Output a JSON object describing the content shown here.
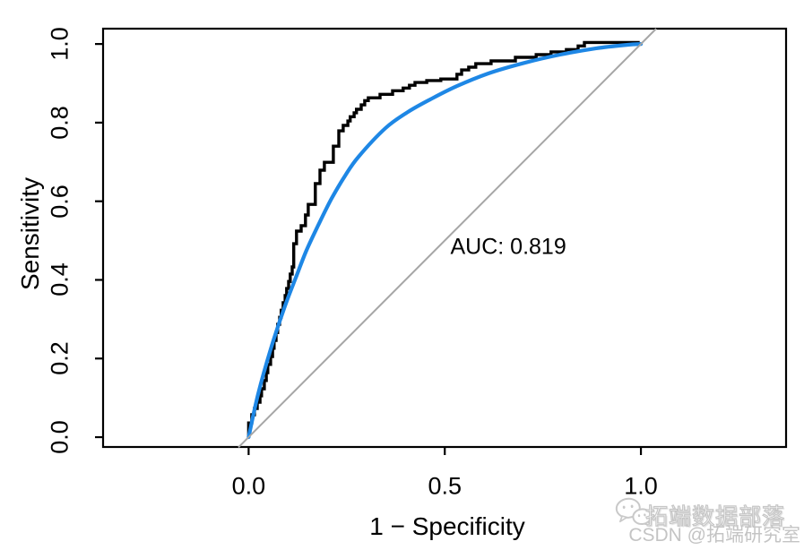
{
  "figure": {
    "xlabel": "1 − Specificity",
    "ylabel": "Sensitivity",
    "auc_label": "AUC: 0.819"
  },
  "watermark": {
    "line1": "拓端数据部落",
    "line2": "CSDN @拓端研究室",
    "icon": "wechat-chat-bubbles-icon",
    "color": "#c6c6c6"
  },
  "chart_data": {
    "type": "line",
    "title": "",
    "xlabel": "1 − Specificity",
    "ylabel": "Sensitivity",
    "auc": 0.819,
    "grid": false,
    "legend": "none",
    "xlim": [
      -0.371,
      1.37
    ],
    "ylim": [
      -0.025,
      1.039
    ],
    "x_tick_values": [
      0,
      0.5,
      1
    ],
    "x_tick_labels": [
      "0.0",
      "0.5",
      "1.0"
    ],
    "y_tick_values": [
      0,
      0.2,
      0.4,
      0.6,
      0.8,
      1
    ],
    "y_tick_labels": [
      "0.0",
      "0.2",
      "0.4",
      "0.6",
      "0.8",
      "1.0"
    ],
    "annotations": [
      {
        "text": "AUC: 0.819",
        "x": 0.662,
        "y": 0.483
      }
    ],
    "series": [
      {
        "name": "empirical_roc",
        "style": "step",
        "color": "#000000",
        "width": 3.4,
        "points": [
          [
            0,
            0
          ],
          [
            0,
            0.036
          ],
          [
            0.008,
            0.036
          ],
          [
            0.008,
            0.057
          ],
          [
            0.015,
            0.057
          ],
          [
            0.015,
            0.073
          ],
          [
            0.022,
            0.073
          ],
          [
            0.022,
            0.089
          ],
          [
            0.029,
            0.089
          ],
          [
            0.029,
            0.105
          ],
          [
            0.033,
            0.105
          ],
          [
            0.033,
            0.123
          ],
          [
            0.04,
            0.123
          ],
          [
            0.04,
            0.144
          ],
          [
            0.045,
            0.144
          ],
          [
            0.045,
            0.164
          ],
          [
            0.049,
            0.164
          ],
          [
            0.049,
            0.185
          ],
          [
            0.056,
            0.185
          ],
          [
            0.056,
            0.205
          ],
          [
            0.061,
            0.205
          ],
          [
            0.061,
            0.226
          ],
          [
            0.065,
            0.226
          ],
          [
            0.065,
            0.246
          ],
          [
            0.07,
            0.246
          ],
          [
            0.07,
            0.266
          ],
          [
            0.074,
            0.266
          ],
          [
            0.074,
            0.287
          ],
          [
            0.079,
            0.287
          ],
          [
            0.079,
            0.305
          ],
          [
            0.083,
            0.305
          ],
          [
            0.083,
            0.323
          ],
          [
            0.088,
            0.323
          ],
          [
            0.088,
            0.342
          ],
          [
            0.093,
            0.342
          ],
          [
            0.093,
            0.36
          ],
          [
            0.097,
            0.36
          ],
          [
            0.097,
            0.378
          ],
          [
            0.102,
            0.378
          ],
          [
            0.102,
            0.396
          ],
          [
            0.106,
            0.396
          ],
          [
            0.106,
            0.415
          ],
          [
            0.111,
            0.415
          ],
          [
            0.111,
            0.433
          ],
          [
            0.115,
            0.433
          ],
          [
            0.115,
            0.492
          ],
          [
            0.122,
            0.492
          ],
          [
            0.122,
            0.524
          ],
          [
            0.134,
            0.524
          ],
          [
            0.134,
            0.538
          ],
          [
            0.145,
            0.538
          ],
          [
            0.145,
            0.565
          ],
          [
            0.152,
            0.565
          ],
          [
            0.152,
            0.592
          ],
          [
            0.17,
            0.592
          ],
          [
            0.17,
            0.645
          ],
          [
            0.182,
            0.645
          ],
          [
            0.182,
            0.679
          ],
          [
            0.193,
            0.679
          ],
          [
            0.193,
            0.699
          ],
          [
            0.216,
            0.699
          ],
          [
            0.216,
            0.74
          ],
          [
            0.23,
            0.74
          ],
          [
            0.23,
            0.779
          ],
          [
            0.241,
            0.779
          ],
          [
            0.241,
            0.793
          ],
          [
            0.253,
            0.793
          ],
          [
            0.253,
            0.804
          ],
          [
            0.259,
            0.804
          ],
          [
            0.259,
            0.815
          ],
          [
            0.269,
            0.815
          ],
          [
            0.269,
            0.825
          ],
          [
            0.275,
            0.825
          ],
          [
            0.275,
            0.834
          ],
          [
            0.287,
            0.834
          ],
          [
            0.287,
            0.845
          ],
          [
            0.296,
            0.845
          ],
          [
            0.296,
            0.856
          ],
          [
            0.305,
            0.856
          ],
          [
            0.305,
            0.863
          ],
          [
            0.335,
            0.863
          ],
          [
            0.335,
            0.872
          ],
          [
            0.367,
            0.872
          ],
          [
            0.367,
            0.881
          ],
          [
            0.394,
            0.881
          ],
          [
            0.394,
            0.888
          ],
          [
            0.41,
            0.888
          ],
          [
            0.41,
            0.895
          ],
          [
            0.424,
            0.895
          ],
          [
            0.424,
            0.902
          ],
          [
            0.454,
            0.902
          ],
          [
            0.454,
            0.907
          ],
          [
            0.49,
            0.907
          ],
          [
            0.49,
            0.911
          ],
          [
            0.531,
            0.911
          ],
          [
            0.531,
            0.923
          ],
          [
            0.543,
            0.923
          ],
          [
            0.543,
            0.934
          ],
          [
            0.561,
            0.934
          ],
          [
            0.561,
            0.941
          ],
          [
            0.579,
            0.941
          ],
          [
            0.579,
            0.95
          ],
          [
            0.618,
            0.95
          ],
          [
            0.618,
            0.957
          ],
          [
            0.68,
            0.957
          ],
          [
            0.68,
            0.966
          ],
          [
            0.733,
            0.966
          ],
          [
            0.733,
            0.973
          ],
          [
            0.771,
            0.973
          ],
          [
            0.771,
            0.98
          ],
          [
            0.81,
            0.98
          ],
          [
            0.81,
            0.986
          ],
          [
            0.84,
            0.986
          ],
          [
            0.84,
            0.995
          ],
          [
            0.856,
            0.995
          ],
          [
            0.856,
            1.004
          ],
          [
            0.997,
            1.004
          ]
        ]
      },
      {
        "name": "smoothed_roc",
        "style": "smooth",
        "color": "#1e87e5",
        "width": 4.2,
        "points": [
          [
            0,
            0
          ],
          [
            0.024,
            0.109
          ],
          [
            0.056,
            0.223
          ],
          [
            0.09,
            0.326
          ],
          [
            0.12,
            0.405
          ],
          [
            0.147,
            0.474
          ],
          [
            0.177,
            0.538
          ],
          [
            0.211,
            0.606
          ],
          [
            0.246,
            0.665
          ],
          [
            0.28,
            0.713
          ],
          [
            0.349,
            0.786
          ],
          [
            0.406,
            0.827
          ],
          [
            0.463,
            0.859
          ],
          [
            0.531,
            0.893
          ],
          [
            0.611,
            0.925
          ],
          [
            0.703,
            0.952
          ],
          [
            0.794,
            0.973
          ],
          [
            0.886,
            0.989
          ],
          [
            0.966,
            0.998
          ],
          [
            1,
            1
          ]
        ]
      },
      {
        "name": "chance_diagonal",
        "style": "line",
        "color": "#a6a6a6",
        "width": 2,
        "points": [
          [
            -0.026,
            -0.026
          ],
          [
            1.039,
            1.039
          ]
        ]
      }
    ]
  }
}
